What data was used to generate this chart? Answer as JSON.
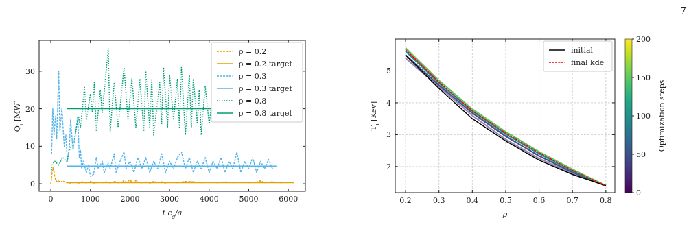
{
  "chart_data": [
    {
      "type": "line",
      "xlabel": "t c$_{s}$/a",
      "ylabel": "Q$_{i}$ [MW]",
      "xlim": [
        -295,
        6430
      ],
      "ylim": [
        -2,
        38.2
      ],
      "xticks": [
        0,
        1000,
        2000,
        3000,
        4000,
        5000,
        6000
      ],
      "yticks": [
        0,
        10,
        20,
        30
      ],
      "grid": false,
      "legend": "top right",
      "series": [
        {
          "name": "ρ = 0.2",
          "color": "#e69f00",
          "line_style": "dashed",
          "x": [
            0,
            30,
            60,
            90,
            120,
            160,
            200,
            250,
            300,
            350,
            400,
            500,
            600,
            700,
            800,
            900,
            1000,
            1100,
            1200,
            1300,
            1400,
            1500,
            1600,
            1700,
            1800,
            1850,
            1900,
            2000,
            2050,
            2100,
            2150,
            2200,
            2300,
            2400,
            2500,
            2600,
            2700,
            2800,
            2900,
            3000,
            3200,
            3400,
            3600,
            3800,
            4000,
            4200,
            4400,
            4600,
            4800,
            5000,
            5200,
            5300,
            5400,
            5600,
            5800,
            6000,
            6130
          ],
          "values": [
            0,
            2.5,
            4.5,
            2.5,
            1.0,
            0.5,
            0.7,
            0.4,
            0.8,
            0.5,
            0.3,
            0.2,
            0.4,
            0.2,
            0.5,
            0.2,
            0.6,
            0.2,
            0.4,
            0.3,
            0.5,
            0.2,
            0.6,
            0.3,
            0.5,
            0.9,
            0.4,
            1.0,
            0.5,
            0.3,
            0.9,
            0.4,
            0.3,
            0.5,
            0.2,
            0.6,
            0.3,
            0.5,
            0.2,
            0.4,
            0.3,
            0.6,
            0.5,
            0.3,
            0.4,
            0.3,
            0.5,
            0.3,
            0.4,
            0.3,
            0.4,
            0.8,
            0.3,
            0.5,
            0.3,
            0.4,
            0.3
          ]
        },
        {
          "name": "ρ = 0.2 target",
          "color": "#e69f00",
          "line_style": "solid",
          "x": [
            400,
            6130
          ],
          "values": [
            0.3,
            0.3
          ]
        },
        {
          "name": "ρ = 0.3",
          "color": "#56b4e9",
          "line_style": "dashed",
          "x": [
            20,
            30,
            50,
            80,
            120,
            150,
            180,
            200,
            230,
            280,
            340,
            380,
            420,
            470,
            500,
            560,
            620,
            680,
            720,
            750,
            780,
            820,
            900,
            950,
            1000,
            1080,
            1150,
            1200,
            1300,
            1350,
            1450,
            1500,
            1600,
            1650,
            1750,
            1850,
            1900,
            2000,
            2100,
            2200,
            2300,
            2400,
            2500,
            2600,
            2700,
            2800,
            2900,
            3000,
            3100,
            3200,
            3300,
            3400,
            3500,
            3600,
            3700,
            3800,
            3900,
            4000,
            4100,
            4200,
            4300,
            4400,
            4500,
            4600,
            4700,
            4800,
            4900,
            5000,
            5100,
            5200,
            5300,
            5400,
            5500,
            5600,
            5650
          ],
          "values": [
            8,
            12,
            20,
            13,
            18,
            12,
            23,
            30,
            14,
            20,
            10,
            13,
            6,
            10,
            17,
            9,
            13,
            18,
            7,
            9,
            4,
            6,
            3,
            5,
            2,
            2.5,
            7,
            4,
            6,
            3,
            5.5,
            4,
            8,
            3,
            6,
            8.5,
            4,
            6,
            3,
            7,
            4,
            7,
            3,
            6,
            4,
            8,
            3,
            6,
            4,
            7,
            8.5,
            4,
            7,
            3,
            6,
            4,
            7,
            3,
            6,
            4,
            7,
            3,
            6,
            4,
            8.5,
            3,
            6,
            4,
            7,
            3,
            6,
            4,
            6.5,
            4,
            4
          ]
        },
        {
          "name": "ρ = 0.3 target",
          "color": "#56b4e9",
          "line_style": "solid",
          "x": [
            400,
            5700
          ],
          "values": [
            4.7,
            4.7
          ]
        },
        {
          "name": "ρ = 0.8",
          "color": "#009e73",
          "line_style": "dotted",
          "x": [
            10,
            30,
            100,
            200,
            300,
            400,
            500,
            600,
            700,
            750,
            800,
            850,
            900,
            1000,
            1050,
            1100,
            1150,
            1250,
            1300,
            1450,
            1500,
            1600,
            1700,
            1850,
            1950,
            2050,
            2150,
            2250,
            2350,
            2400,
            2500,
            2550,
            2600,
            2750,
            2800,
            2850,
            2950,
            3000,
            3100,
            3200,
            3250,
            3300,
            3400,
            3500,
            3550,
            3600,
            3700,
            3750,
            3800,
            3900,
            4000,
            4050
          ],
          "values": [
            3,
            5,
            6,
            5,
            7,
            6,
            10,
            12,
            18,
            15,
            20,
            26,
            17,
            24,
            19,
            27,
            14,
            25,
            19,
            36,
            14,
            27,
            15,
            31,
            17,
            28,
            15,
            28,
            14,
            30,
            15,
            28,
            13,
            27,
            16,
            31,
            15,
            29,
            17,
            28,
            15,
            31,
            13,
            29,
            15,
            28,
            16,
            25,
            13,
            26,
            16,
            20
          ]
        },
        {
          "name": "ρ = 0.8 target",
          "color": "#009e73",
          "line_style": "solid",
          "x": [
            400,
            4050
          ],
          "values": [
            20,
            20
          ]
        }
      ]
    },
    {
      "type": "line",
      "xlabel": "ρ",
      "ylabel": "T$_{i}$ [Kev]",
      "clabel": "Optimization steps",
      "clim": [
        0,
        200
      ],
      "cticks": [
        0,
        50,
        100,
        150,
        200
      ],
      "xlim": [
        0.169,
        0.827
      ],
      "ylim": [
        1.18,
        6.0
      ],
      "xticks": [
        0.2,
        0.3,
        0.4,
        0.5,
        0.6,
        0.7,
        0.8
      ],
      "yticks": [
        2,
        3,
        4,
        5
      ],
      "grid": true,
      "legend": "top right",
      "annotations": [
        "7"
      ],
      "x": [
        0.2,
        0.3,
        0.4,
        0.5,
        0.6,
        0.7,
        0.8
      ],
      "series": [
        {
          "color": "#9a86b0",
          "values": [
            5.4,
            4.5,
            3.6,
            2.85,
            2.25,
            1.78,
            1.4
          ]
        },
        {
          "color": "#3b528b",
          "values": [
            5.5,
            4.55,
            3.68,
            2.95,
            2.33,
            1.82,
            1.4
          ]
        },
        {
          "color": "#21918c",
          "values": [
            5.62,
            4.62,
            3.74,
            3.02,
            2.4,
            1.86,
            1.4
          ]
        },
        {
          "color": "#5ec962",
          "values": [
            5.72,
            4.7,
            3.8,
            3.09,
            2.46,
            1.91,
            1.4
          ]
        },
        {
          "name": "initial",
          "color": "#000000",
          "line_style": "solid",
          "values": [
            5.5,
            4.45,
            3.5,
            2.8,
            2.2,
            1.75,
            1.4
          ]
        },
        {
          "name": "final kde",
          "color": "#ff0000",
          "line_style": "dashed",
          "values": [
            5.67,
            4.65,
            3.75,
            3.05,
            2.43,
            1.88,
            1.4
          ]
        }
      ]
    }
  ]
}
